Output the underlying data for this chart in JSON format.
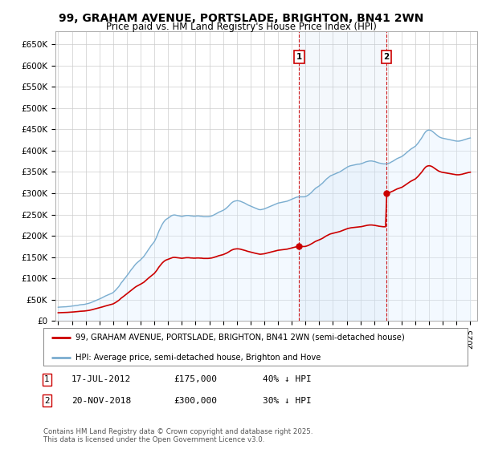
{
  "title": "99, GRAHAM AVENUE, PORTSLADE, BRIGHTON, BN41 2WN",
  "subtitle": "Price paid vs. HM Land Registry's House Price Index (HPI)",
  "ylabel_ticks": [
    "£0",
    "£50K",
    "£100K",
    "£150K",
    "£200K",
    "£250K",
    "£300K",
    "£350K",
    "£400K",
    "£450K",
    "£500K",
    "£550K",
    "£600K",
    "£650K"
  ],
  "ytick_values": [
    0,
    50000,
    100000,
    150000,
    200000,
    250000,
    300000,
    350000,
    400000,
    450000,
    500000,
    550000,
    600000,
    650000
  ],
  "ylim": [
    0,
    680000
  ],
  "xlim_start": 1994.8,
  "xlim_end": 2025.5,
  "bg_color": "#ffffff",
  "plot_bg": "#ffffff",
  "grid_color": "#cccccc",
  "red_line_color": "#cc0000",
  "blue_line_color": "#7aadcf",
  "blue_fill_color": "#ddeeff",
  "purchase1_x": 2012.54,
  "purchase1_price": 175000,
  "purchase2_x": 2018.9,
  "purchase2_price": 300000,
  "legend_line1": "99, GRAHAM AVENUE, PORTSLADE, BRIGHTON, BN41 2WN (semi-detached house)",
  "legend_line2": "HPI: Average price, semi-detached house, Brighton and Hove",
  "footer": "Contains HM Land Registry data © Crown copyright and database right 2025.\nThis data is licensed under the Open Government Licence v3.0.",
  "hpi_years": [
    1995.0,
    1995.08,
    1995.17,
    1995.25,
    1995.33,
    1995.42,
    1995.5,
    1995.58,
    1995.67,
    1995.75,
    1995.83,
    1995.92,
    1996.0,
    1996.08,
    1996.17,
    1996.25,
    1996.33,
    1996.42,
    1996.5,
    1996.58,
    1996.67,
    1996.75,
    1996.83,
    1996.92,
    1997.0,
    1997.08,
    1997.17,
    1997.25,
    1997.33,
    1997.42,
    1997.5,
    1997.58,
    1997.67,
    1997.75,
    1997.83,
    1997.92,
    1998.0,
    1998.08,
    1998.17,
    1998.25,
    1998.33,
    1998.42,
    1998.5,
    1998.58,
    1998.67,
    1998.75,
    1998.83,
    1998.92,
    1999.0,
    1999.08,
    1999.17,
    1999.25,
    1999.33,
    1999.42,
    1999.5,
    1999.58,
    1999.67,
    1999.75,
    1999.83,
    1999.92,
    2000.0,
    2000.08,
    2000.17,
    2000.25,
    2000.33,
    2000.42,
    2000.5,
    2000.58,
    2000.67,
    2000.75,
    2000.83,
    2000.92,
    2001.0,
    2001.08,
    2001.17,
    2001.25,
    2001.33,
    2001.42,
    2001.5,
    2001.58,
    2001.67,
    2001.75,
    2001.83,
    2001.92,
    2002.0,
    2002.08,
    2002.17,
    2002.25,
    2002.33,
    2002.42,
    2002.5,
    2002.58,
    2002.67,
    2002.75,
    2002.83,
    2002.92,
    2003.0,
    2003.08,
    2003.17,
    2003.25,
    2003.33,
    2003.42,
    2003.5,
    2003.58,
    2003.67,
    2003.75,
    2003.83,
    2003.92,
    2004.0,
    2004.08,
    2004.17,
    2004.25,
    2004.33,
    2004.42,
    2004.5,
    2004.58,
    2004.67,
    2004.75,
    2004.83,
    2004.92,
    2005.0,
    2005.08,
    2005.17,
    2005.25,
    2005.33,
    2005.42,
    2005.5,
    2005.58,
    2005.67,
    2005.75,
    2005.83,
    2005.92,
    2006.0,
    2006.08,
    2006.17,
    2006.25,
    2006.33,
    2006.42,
    2006.5,
    2006.58,
    2006.67,
    2006.75,
    2006.83,
    2006.92,
    2007.0,
    2007.08,
    2007.17,
    2007.25,
    2007.33,
    2007.42,
    2007.5,
    2007.58,
    2007.67,
    2007.75,
    2007.83,
    2007.92,
    2008.0,
    2008.08,
    2008.17,
    2008.25,
    2008.33,
    2008.42,
    2008.5,
    2008.58,
    2008.67,
    2008.75,
    2008.83,
    2008.92,
    2009.0,
    2009.08,
    2009.17,
    2009.25,
    2009.33,
    2009.42,
    2009.5,
    2009.58,
    2009.67,
    2009.75,
    2009.83,
    2009.92,
    2010.0,
    2010.08,
    2010.17,
    2010.25,
    2010.33,
    2010.42,
    2010.5,
    2010.58,
    2010.67,
    2010.75,
    2010.83,
    2010.92,
    2011.0,
    2011.08,
    2011.17,
    2011.25,
    2011.33,
    2011.42,
    2011.5,
    2011.58,
    2011.67,
    2011.75,
    2011.83,
    2011.92,
    2012.0,
    2012.08,
    2012.17,
    2012.25,
    2012.33,
    2012.42,
    2012.5,
    2012.58,
    2012.67,
    2012.75,
    2012.83,
    2012.92,
    2013.0,
    2013.08,
    2013.17,
    2013.25,
    2013.33,
    2013.42,
    2013.5,
    2013.58,
    2013.67,
    2013.75,
    2013.83,
    2013.92,
    2014.0,
    2014.08,
    2014.17,
    2014.25,
    2014.33,
    2014.42,
    2014.5,
    2014.58,
    2014.67,
    2014.75,
    2014.83,
    2014.92,
    2015.0,
    2015.08,
    2015.17,
    2015.25,
    2015.33,
    2015.42,
    2015.5,
    2015.58,
    2015.67,
    2015.75,
    2015.83,
    2015.92,
    2016.0,
    2016.08,
    2016.17,
    2016.25,
    2016.33,
    2016.42,
    2016.5,
    2016.58,
    2016.67,
    2016.75,
    2016.83,
    2016.92,
    2017.0,
    2017.08,
    2017.17,
    2017.25,
    2017.33,
    2017.42,
    2017.5,
    2017.58,
    2017.67,
    2017.75,
    2017.83,
    2017.92,
    2018.0,
    2018.08,
    2018.17,
    2018.25,
    2018.33,
    2018.42,
    2018.5,
    2018.58,
    2018.67,
    2018.75,
    2018.83,
    2018.92,
    2019.0,
    2019.08,
    2019.17,
    2019.25,
    2019.33,
    2019.42,
    2019.5,
    2019.58,
    2019.67,
    2019.75,
    2019.83,
    2019.92,
    2020.0,
    2020.08,
    2020.17,
    2020.25,
    2020.33,
    2020.42,
    2020.5,
    2020.58,
    2020.67,
    2020.75,
    2020.83,
    2020.92,
    2021.0,
    2021.08,
    2021.17,
    2021.25,
    2021.33,
    2021.42,
    2021.5,
    2021.58,
    2021.67,
    2021.75,
    2021.83,
    2021.92,
    2022.0,
    2022.08,
    2022.17,
    2022.25,
    2022.33,
    2022.42,
    2022.5,
    2022.58,
    2022.67,
    2022.75,
    2022.83,
    2022.92,
    2023.0,
    2023.08,
    2023.17,
    2023.25,
    2023.33,
    2023.42,
    2023.5,
    2023.58,
    2023.67,
    2023.75,
    2023.83,
    2023.92,
    2024.0,
    2024.08,
    2024.17,
    2024.25,
    2024.33,
    2024.42,
    2024.5,
    2024.58,
    2024.67,
    2024.75,
    2024.83,
    2024.92,
    2025.0
  ],
  "hpi_index": [
    57,
    57.5,
    57.8,
    58,
    58.2,
    58.5,
    58.8,
    59.1,
    59.5,
    60,
    60.5,
    61,
    62,
    62.5,
    63,
    64,
    64.5,
    65,
    66,
    67,
    67.5,
    68,
    68.5,
    69,
    70,
    71,
    72,
    73.5,
    75,
    77,
    79,
    81,
    83,
    85,
    87,
    89,
    91,
    93,
    95.5,
    98,
    100.5,
    103,
    105,
    107,
    109,
    111,
    113,
    115,
    118,
    122,
    127,
    132,
    137,
    143,
    150,
    157,
    163,
    169,
    175,
    181,
    187,
    193,
    200,
    207,
    213,
    219,
    225,
    231,
    237,
    241,
    245,
    249,
    253,
    258,
    263,
    268,
    275,
    282,
    289,
    296,
    303,
    310,
    316,
    322,
    328,
    337,
    348,
    360,
    371,
    382,
    391,
    400,
    408,
    414,
    419,
    422,
    425,
    428,
    432,
    435,
    437,
    438,
    438,
    437,
    436,
    435,
    434,
    433,
    432,
    433,
    434,
    435,
    436,
    436,
    436,
    435,
    434,
    434,
    433,
    433,
    433,
    434,
    434,
    434,
    433,
    433,
    432,
    431,
    431,
    431,
    431,
    431,
    432,
    433,
    434,
    436,
    438,
    441,
    443,
    446,
    449,
    451,
    453,
    455,
    457,
    460,
    463,
    467,
    471,
    476,
    481,
    486,
    490,
    493,
    495,
    496,
    497,
    497,
    496,
    495,
    493,
    491,
    489,
    487,
    484,
    481,
    479,
    477,
    475,
    473,
    471,
    469,
    467,
    465,
    463,
    461,
    460,
    460,
    461,
    462,
    463,
    465,
    467,
    469,
    471,
    473,
    475,
    477,
    479,
    481,
    483,
    485,
    487,
    488,
    489,
    490,
    491,
    492,
    493,
    494,
    495,
    497,
    499,
    501,
    503,
    505,
    507,
    509,
    511,
    512,
    513,
    513,
    513,
    513,
    513,
    513,
    514,
    516,
    519,
    522,
    526,
    530,
    535,
    540,
    545,
    549,
    552,
    555,
    558,
    562,
    566,
    570,
    575,
    580,
    585,
    589,
    593,
    597,
    600,
    602,
    604,
    606,
    608,
    610,
    612,
    614,
    616,
    619,
    622,
    625,
    628,
    631,
    634,
    637,
    639,
    641,
    642,
    643,
    644,
    645,
    646,
    647,
    648,
    648,
    649,
    650,
    652,
    654,
    656,
    658,
    659,
    660,
    661,
    661,
    661,
    660,
    659,
    658,
    656,
    655,
    653,
    652,
    651,
    650,
    649,
    649,
    649,
    649,
    650,
    652,
    654,
    657,
    659,
    662,
    665,
    668,
    671,
    673,
    675,
    677,
    679,
    682,
    686,
    690,
    694,
    698,
    702,
    706,
    710,
    713,
    716,
    719,
    722,
    727,
    733,
    739,
    746,
    753,
    760,
    768,
    776,
    782,
    786,
    788,
    789,
    788,
    786,
    783,
    779,
    775,
    771,
    767,
    763,
    760,
    758,
    756,
    755,
    754,
    753,
    752,
    751,
    750,
    749,
    748,
    747,
    746,
    745,
    744,
    743,
    743,
    743,
    744,
    745,
    746,
    748,
    749,
    751,
    752,
    754,
    755,
    756
  ],
  "xtick_years": [
    1995,
    1996,
    1997,
    1998,
    1999,
    2000,
    2001,
    2002,
    2003,
    2004,
    2005,
    2006,
    2007,
    2008,
    2009,
    2010,
    2011,
    2012,
    2013,
    2014,
    2015,
    2016,
    2017,
    2018,
    2019,
    2020,
    2021,
    2022,
    2023,
    2024,
    2025
  ]
}
